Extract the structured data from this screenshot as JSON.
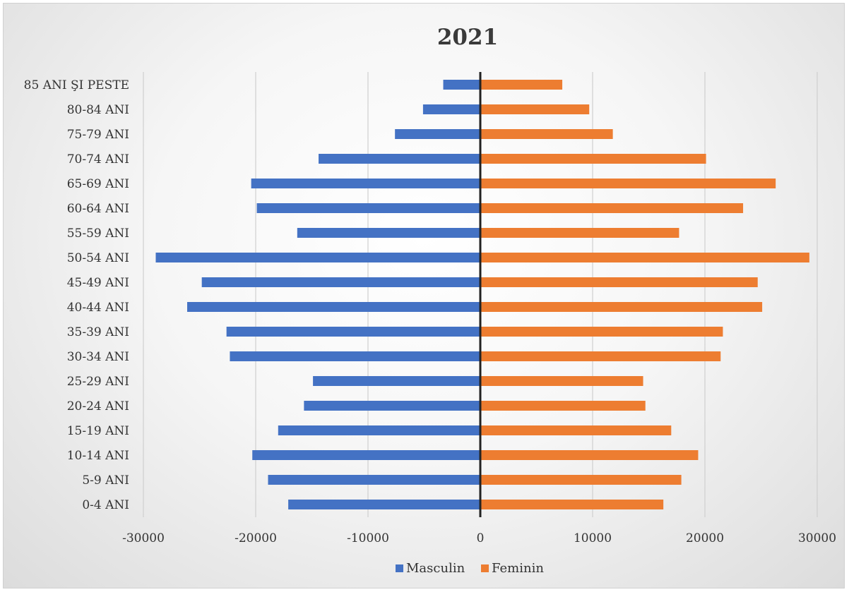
{
  "chart_data": {
    "type": "bar",
    "orientation": "horizontal",
    "title": "2021",
    "categories": [
      "85 ANI ŞI PESTE",
      "80-84 ANI",
      "75-79 ANI",
      "70-74 ANI",
      "65-69 ANI",
      "60-64 ANI",
      "55-59 ANI",
      "50-54 ANI",
      "45-49 ANI",
      "40-44 ANI",
      "35-39 ANI",
      "30-34 ANI",
      "25-29 ANI",
      "20-24 ANI",
      "15-19 ANI",
      "10-14 ANI",
      "5-9 ANI",
      "0-4 ANI"
    ],
    "series": [
      {
        "name": "Masculin",
        "color": "#4472c4",
        "values": [
          -3300,
          -5100,
          -7600,
          -14400,
          -20400,
          -19900,
          -16300,
          -28900,
          -24800,
          -26100,
          -22600,
          -22300,
          -14900,
          -15700,
          -18000,
          -20300,
          -18900,
          -17100
        ]
      },
      {
        "name": "Feminin",
        "color": "#ed7d31",
        "values": [
          7300,
          9700,
          11800,
          20100,
          26300,
          23400,
          17700,
          29300,
          24700,
          25100,
          21600,
          21400,
          14500,
          14700,
          17000,
          19400,
          17900,
          16300
        ]
      }
    ],
    "xlim": [
      -30000,
      30000
    ],
    "xticks": [
      -30000,
      -20000,
      -10000,
      0,
      10000,
      20000,
      30000
    ],
    "xtick_labels": [
      "-30000",
      "-20000",
      "-10000",
      "0",
      "10000",
      "20000",
      "30000"
    ],
    "grid": "vertical",
    "legend": "bottom",
    "xlabel": "",
    "ylabel": ""
  }
}
